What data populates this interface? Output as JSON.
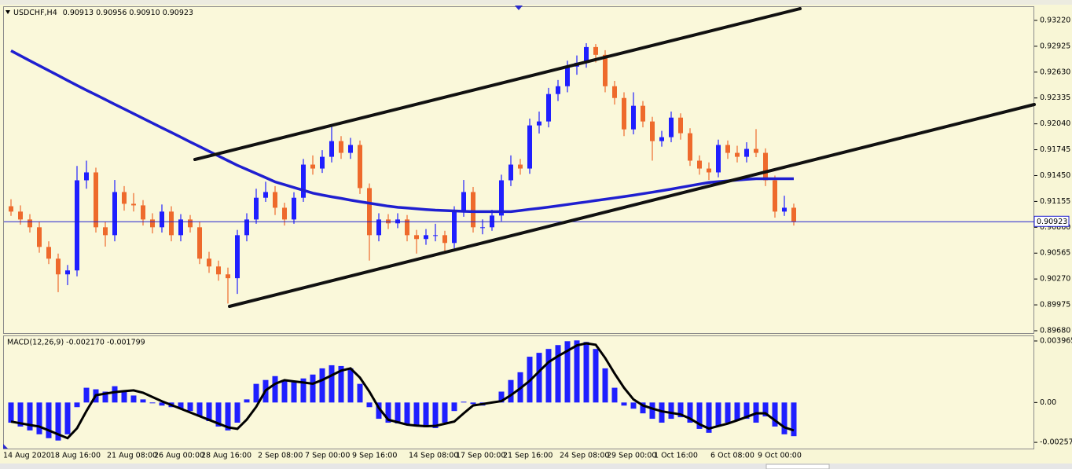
{
  "chart_data": [
    {
      "type": "candlestick",
      "title": "USDCHF,H4",
      "subtitle": "0.90913 0.90956 0.90910 0.90923",
      "up_color": "#1f1fff",
      "down_color": "#ee6a2c",
      "grid": false,
      "ylim": [
        0.89653,
        0.93381
      ],
      "yticks": [
        {
          "value": 0.9322,
          "label": "0.93220"
        },
        0.92925,
        {
          "value": 0.9263,
          "label": "0.92630"
        },
        0.92335,
        {
          "value": 0.9204,
          "label": "0.92040"
        },
        0.91745,
        {
          "value": 0.9145,
          "label": "0.91450"
        },
        0.91155,
        {
          "value": 0.9086,
          "label": "0.90860"
        },
        0.90565,
        {
          "value": 0.9027,
          "label": "0.90270"
        },
        0.89975,
        {
          "value": 0.8968,
          "label": "0.89680"
        }
      ],
      "price_line": {
        "value": 0.90923,
        "label": "0.90923",
        "color": "#1f1fd0"
      },
      "categories": [
        "14 Aug 2020",
        null,
        null,
        null,
        null,
        "18 Aug 16:00",
        null,
        null,
        null,
        null,
        null,
        "21 Aug 08:00",
        null,
        null,
        null,
        null,
        "26 Aug 00:00",
        null,
        null,
        null,
        null,
        "28 Aug 16:00",
        null,
        null,
        null,
        null,
        null,
        "2 Sep 08:00",
        null,
        null,
        null,
        null,
        "7 Sep 00:00",
        null,
        null,
        null,
        null,
        "9 Sep 16:00",
        null,
        null,
        null,
        null,
        null,
        "14 Sep 08:00",
        null,
        null,
        null,
        null,
        "17 Sep 00:00",
        null,
        null,
        null,
        null,
        "21 Sep 16:00",
        null,
        null,
        null,
        null,
        null,
        "24 Sep 08:00",
        null,
        null,
        null,
        null,
        "29 Sep 00:00",
        null,
        null,
        null,
        null,
        "1 Oct 16:00",
        null,
        null,
        null,
        null,
        null,
        "6 Oct 08:00",
        null,
        null,
        null,
        null,
        "9 Oct 00:00",
        null,
        null,
        null
      ],
      "ohlc": [
        [
          0.911,
          0.9118,
          0.9099,
          0.91039
        ],
        [
          0.91039,
          0.9111,
          0.9089,
          0.90949
        ],
        [
          0.90949,
          0.9101,
          0.908,
          0.9086
        ],
        [
          0.9086,
          0.9092,
          0.9057,
          0.90636
        ],
        [
          0.90636,
          0.907,
          0.9044,
          0.90502
        ],
        [
          0.90502,
          0.9056,
          0.9012,
          0.90323
        ],
        [
          0.90323,
          0.9043,
          0.902,
          0.90368
        ],
        [
          0.90368,
          0.9156,
          0.903,
          0.91396
        ],
        [
          0.91396,
          0.9162,
          0.913,
          0.91486
        ],
        [
          0.91486,
          0.9154,
          0.908,
          0.9086
        ],
        [
          0.9086,
          0.9092,
          0.9064,
          0.9077
        ],
        [
          0.9077,
          0.914,
          0.907,
          0.91262
        ],
        [
          0.91262,
          0.9133,
          0.9105,
          0.91128
        ],
        [
          0.91128,
          0.9125,
          0.9104,
          0.9111
        ],
        [
          0.9111,
          0.9117,
          0.9088,
          0.90949
        ],
        [
          0.90949,
          0.9102,
          0.9079,
          0.9086
        ],
        [
          0.9086,
          0.9112,
          0.908,
          0.91039
        ],
        [
          0.91039,
          0.911,
          0.907,
          0.9077
        ],
        [
          0.9077,
          0.9101,
          0.907,
          0.90949
        ],
        [
          0.90949,
          0.91,
          0.908,
          0.9086
        ],
        [
          0.9086,
          0.9092,
          0.9044,
          0.90502
        ],
        [
          0.90502,
          0.9058,
          0.9034,
          0.90413
        ],
        [
          0.90413,
          0.9048,
          0.9025,
          0.90323
        ],
        [
          0.90323,
          0.904,
          0.8999,
          0.90279
        ],
        [
          0.90279,
          0.9083,
          0.901,
          0.9077
        ],
        [
          0.9077,
          0.9102,
          0.907,
          0.90949
        ],
        [
          0.90949,
          0.913,
          0.909,
          0.91197
        ],
        [
          0.91197,
          0.9138,
          0.9115,
          0.91262
        ],
        [
          0.91262,
          0.9133,
          0.91,
          0.91083
        ],
        [
          0.91083,
          0.9114,
          0.9088,
          0.90949
        ],
        [
          0.90949,
          0.9126,
          0.909,
          0.91197
        ],
        [
          0.91197,
          0.9164,
          0.9115,
          0.91575
        ],
        [
          0.91575,
          0.9168,
          0.9146,
          0.9153
        ],
        [
          0.9153,
          0.9174,
          0.9148,
          0.91664
        ],
        [
          0.91664,
          0.9202,
          0.916,
          0.91843
        ],
        [
          0.91843,
          0.919,
          0.9164,
          0.91709
        ],
        [
          0.91709,
          0.9188,
          0.9164,
          0.91799
        ],
        [
          0.91799,
          0.9185,
          0.9124,
          0.91307
        ],
        [
          0.91307,
          0.9136,
          0.9048,
          0.9077
        ],
        [
          0.9077,
          0.9102,
          0.907,
          0.90949
        ],
        [
          0.90949,
          0.9101,
          0.9084,
          0.90905
        ],
        [
          0.90905,
          0.9102,
          0.9085,
          0.90949
        ],
        [
          0.90949,
          0.91,
          0.907,
          0.9077
        ],
        [
          0.9077,
          0.9083,
          0.9056,
          0.90726
        ],
        [
          0.90726,
          0.9084,
          0.9066,
          0.9077
        ],
        [
          0.9077,
          0.909,
          0.907,
          0.9077
        ],
        [
          0.9077,
          0.9082,
          0.9059,
          0.90681
        ],
        [
          0.90681,
          0.911,
          0.9062,
          0.91039
        ],
        [
          0.91039,
          0.914,
          0.9098,
          0.91262
        ],
        [
          0.91262,
          0.9132,
          0.908,
          0.9086
        ],
        [
          0.9086,
          0.9095,
          0.9078,
          0.9086
        ],
        [
          0.9086,
          0.9106,
          0.9082,
          0.90994
        ],
        [
          0.90994,
          0.9146,
          0.9093,
          0.91396
        ],
        [
          0.91396,
          0.9168,
          0.9133,
          0.91575
        ],
        [
          0.91575,
          0.9164,
          0.9146,
          0.9153
        ],
        [
          0.9153,
          0.921,
          0.9147,
          0.92022
        ],
        [
          0.92022,
          0.9218,
          0.9193,
          0.92067
        ],
        [
          0.92067,
          0.9245,
          0.92,
          0.9238
        ],
        [
          0.9238,
          0.9254,
          0.923,
          0.92469
        ],
        [
          0.92469,
          0.9276,
          0.924,
          0.92693
        ],
        [
          0.92693,
          0.9282,
          0.926,
          0.92737
        ],
        [
          0.92737,
          0.9296,
          0.9268,
          0.92916
        ],
        [
          0.92916,
          0.9295,
          0.9274,
          0.92827
        ],
        [
          0.92827,
          0.9288,
          0.924,
          0.92469
        ],
        [
          0.92469,
          0.9253,
          0.9226,
          0.92335
        ],
        [
          0.92335,
          0.924,
          0.919,
          0.91977
        ],
        [
          0.91977,
          0.924,
          0.9192,
          0.92246
        ],
        [
          0.92246,
          0.923,
          0.92,
          0.92067
        ],
        [
          0.92067,
          0.9212,
          0.9162,
          0.91843
        ],
        [
          0.91843,
          0.9196,
          0.9178,
          0.91888
        ],
        [
          0.91888,
          0.9218,
          0.9183,
          0.92111
        ],
        [
          0.92111,
          0.9216,
          0.9186,
          0.91933
        ],
        [
          0.91933,
          0.9199,
          0.9156,
          0.9162
        ],
        [
          0.9162,
          0.9168,
          0.9146,
          0.9153
        ],
        [
          0.9153,
          0.916,
          0.914,
          0.91486
        ],
        [
          0.91486,
          0.9186,
          0.9143,
          0.91799
        ],
        [
          0.91799,
          0.9185,
          0.9164,
          0.91709
        ],
        [
          0.91709,
          0.9179,
          0.916,
          0.91664
        ],
        [
          0.91664,
          0.9183,
          0.916,
          0.91754
        ],
        [
          0.91754,
          0.9198,
          0.9166,
          0.91709
        ],
        [
          0.91709,
          0.9176,
          0.9133,
          0.91396
        ],
        [
          0.91396,
          0.9145,
          0.9097,
          0.91039
        ],
        [
          0.91039,
          0.9122,
          0.9099,
          0.91083
        ],
        [
          0.91083,
          0.9113,
          0.9088,
          0.90923
        ]
      ],
      "ma": {
        "color": "#1f1fd0",
        "values": [
          0.92874,
          0.92817,
          0.9276,
          0.92704,
          0.92648,
          0.92592,
          0.92535,
          0.92479,
          0.92424,
          0.92371,
          0.92317,
          0.92263,
          0.9221,
          0.92156,
          0.92102,
          0.92049,
          0.91995,
          0.91942,
          0.91888,
          0.91834,
          0.91781,
          0.91727,
          0.91673,
          0.9162,
          0.91567,
          0.9152,
          0.91473,
          0.91426,
          0.91378,
          0.91346,
          0.91314,
          0.91282,
          0.9125,
          0.91228,
          0.91208,
          0.9119,
          0.9117,
          0.91152,
          0.91135,
          0.91118,
          0.91101,
          0.91088,
          0.9108,
          0.91071,
          0.91062,
          0.91055,
          0.91051,
          0.91047,
          0.91042,
          0.91039,
          0.91039,
          0.91039,
          0.91039,
          0.91039,
          0.91051,
          0.91065,
          0.91077,
          0.9109,
          0.91105,
          0.9112,
          0.91135,
          0.91149,
          0.91165,
          0.9118,
          0.91195,
          0.9121,
          0.91226,
          0.91243,
          0.9126,
          0.91277,
          0.91295,
          0.91315,
          0.91334,
          0.91353,
          0.91371,
          0.9138,
          0.91389,
          0.91398,
          0.91407,
          0.91414,
          0.91414,
          0.91414,
          0.91414,
          0.91414
        ]
      }
    },
    {
      "type": "macd",
      "title": "MACD(12,26,9) -0.002170 -0.001799",
      "ylim": [
        -0.00297,
        0.00432
      ],
      "yticks": [
        0.003965,
        {
          "value": 0,
          "label": "0.00"
        },
        -0.00257
      ],
      "histogram": {
        "color": "#1f1fff",
        "values": [
          -0.0013,
          -0.00155,
          -0.0018,
          -0.00205,
          -0.0023,
          -0.00245,
          -0.00205,
          -0.0003,
          0.00095,
          0.00085,
          0.0007,
          0.00105,
          0.0007,
          0.00045,
          0.0002,
          -5e-05,
          -0.0002,
          -0.0003,
          -0.0004,
          -0.00055,
          -0.0009,
          -0.0012,
          -0.00155,
          -0.0018,
          -0.0013,
          0.0002,
          0.0012,
          0.00145,
          0.0017,
          0.00145,
          0.0013,
          0.00155,
          0.0018,
          0.0022,
          0.0024,
          0.00235,
          0.0022,
          0.0012,
          -0.0003,
          -0.00105,
          -0.0013,
          -0.00135,
          -0.0014,
          -0.00155,
          -0.0016,
          -0.00165,
          -0.0013,
          -0.00055,
          5e-05,
          -0.0001,
          -0.0002,
          0,
          0.0007,
          0.00145,
          0.00195,
          0.00295,
          0.0032,
          0.00345,
          0.0037,
          0.00395,
          0.004,
          0.0039,
          0.00345,
          0.0022,
          0.00095,
          -0.0002,
          -0.0004,
          -0.0007,
          -0.00105,
          -0.0013,
          -0.00105,
          -0.00095,
          -0.0013,
          -0.0017,
          -0.00195,
          -0.00155,
          -0.0013,
          -0.00115,
          -0.00105,
          -0.0013,
          -0.0009,
          -0.00155,
          -0.00205,
          -0.00217
        ]
      },
      "signal": {
        "color": "#000000",
        "values": [
          -0.00123,
          -0.00134,
          -0.00145,
          -0.00155,
          -0.0018,
          -0.00205,
          -0.0023,
          -0.00166,
          -0.00055,
          0.00047,
          0.00057,
          0.00067,
          0.00073,
          0.00078,
          0.00063,
          0.00035,
          8e-05,
          -0.00016,
          -0.0004,
          -0.00064,
          -0.00088,
          -0.00112,
          -0.00136,
          -0.0016,
          -0.0017,
          -0.0011,
          -0.00028,
          0.00078,
          0.0012,
          0.00144,
          0.00136,
          0.00129,
          0.00121,
          0.00145,
          0.00175,
          0.00205,
          0.0022,
          0.0016,
          0.0007,
          -0.00035,
          -0.00111,
          -0.00127,
          -0.00143,
          -0.00149,
          -0.00153,
          -0.00151,
          -0.00137,
          -0.00123,
          -0.0007,
          -0.00019,
          -0.0001,
          0,
          9e-05,
          0.00047,
          0.00091,
          0.0014,
          0.002,
          0.0026,
          0.00299,
          0.00333,
          0.00368,
          0.00381,
          0.00372,
          0.00287,
          0.00187,
          0.00095,
          0.0002,
          -0.00019,
          -0.00039,
          -0.00057,
          -0.00067,
          -0.00077,
          -0.00104,
          -0.0014,
          -0.00168,
          -0.00152,
          -0.00136,
          -0.00115,
          -0.00093,
          -0.0007,
          -0.0007,
          -0.00115,
          -0.0016,
          -0.001799
        ]
      }
    }
  ]
}
